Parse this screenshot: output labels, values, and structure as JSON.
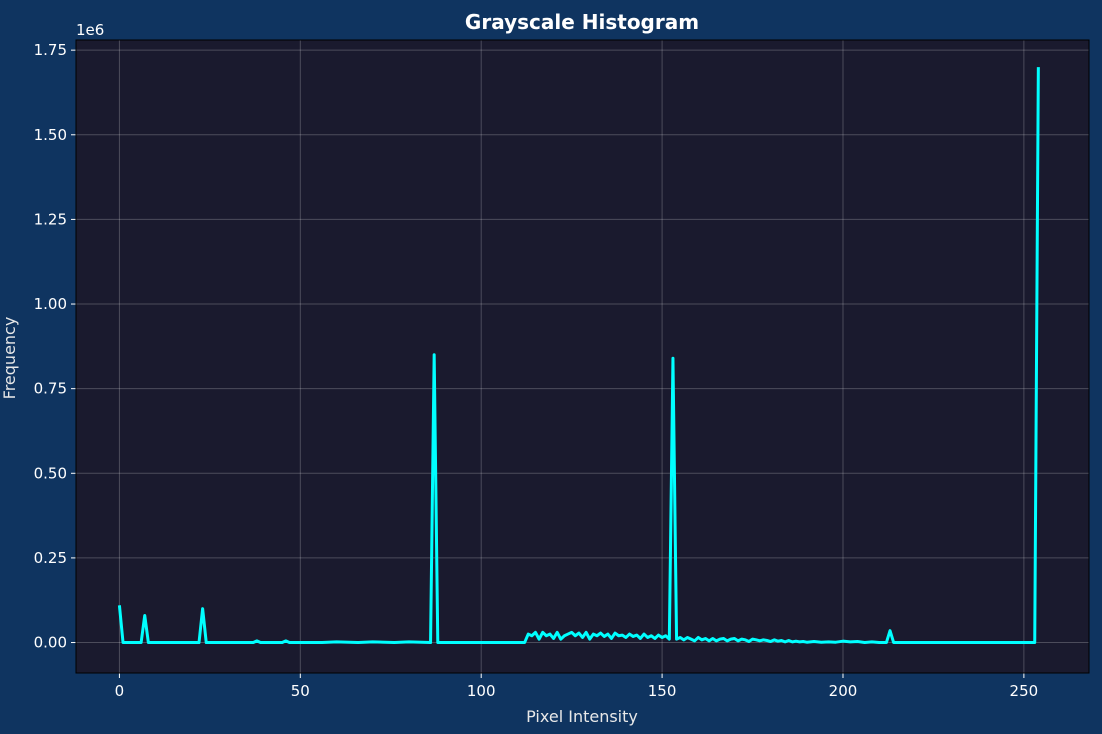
{
  "colors": {
    "figure_background": "#0f3460",
    "plot_background": "#1a1a2e",
    "line": "#00ffff",
    "grid": "#ffffff",
    "text": "#ffffff"
  },
  "chart_data": {
    "type": "line",
    "title": "Grayscale Histogram",
    "xlabel": "Pixel Intensity",
    "ylabel": "Frequency",
    "y_offset_label": "1e6",
    "xlim": [
      -12,
      268
    ],
    "ylim": [
      -0.09,
      1.78
    ],
    "x_ticks": [
      0,
      50,
      100,
      150,
      200,
      250
    ],
    "y_ticks": [
      0.0,
      0.25,
      0.5,
      0.75,
      1.0,
      1.25,
      1.5,
      1.75
    ],
    "y_tick_labels": [
      "0.00",
      "0.25",
      "0.50",
      "0.75",
      "1.00",
      "1.25",
      "1.50",
      "1.75"
    ],
    "grid": true,
    "series": [
      {
        "x": [
          0,
          1,
          6,
          7,
          8,
          22,
          23,
          24,
          37,
          38,
          39,
          45,
          46,
          47,
          56,
          60,
          66,
          70,
          76,
          80,
          86,
          87,
          88,
          112,
          113,
          114,
          115,
          116,
          117,
          118,
          119,
          120,
          121,
          122,
          123,
          124,
          125,
          126,
          127,
          128,
          129,
          130,
          131,
          132,
          133,
          134,
          135,
          136,
          137,
          138,
          139,
          140,
          141,
          142,
          143,
          144,
          145,
          146,
          147,
          148,
          149,
          150,
          151,
          152,
          153,
          154,
          155,
          156,
          157,
          158,
          159,
          160,
          161,
          162,
          163,
          164,
          165,
          166,
          167,
          168,
          169,
          170,
          171,
          172,
          173,
          174,
          175,
          176,
          177,
          178,
          179,
          180,
          181,
          182,
          183,
          184,
          185,
          186,
          187,
          188,
          189,
          190,
          192,
          194,
          196,
          198,
          200,
          202,
          204,
          206,
          208,
          210,
          212,
          213,
          214,
          220,
          230,
          240,
          253,
          254
        ],
        "y": [
          0.11,
          0.0,
          0.0,
          0.08,
          0.0,
          0.0,
          0.1,
          0.0,
          0.0,
          0.005,
          0.0,
          0.0,
          0.005,
          0.0,
          0.0,
          0.002,
          0.0,
          0.002,
          0.0,
          0.002,
          0.0,
          0.85,
          0.0,
          0.0,
          0.025,
          0.02,
          0.03,
          0.01,
          0.03,
          0.02,
          0.025,
          0.012,
          0.03,
          0.01,
          0.02,
          0.025,
          0.03,
          0.02,
          0.028,
          0.015,
          0.03,
          0.01,
          0.025,
          0.02,
          0.028,
          0.018,
          0.025,
          0.012,
          0.028,
          0.02,
          0.022,
          0.015,
          0.025,
          0.018,
          0.022,
          0.012,
          0.025,
          0.015,
          0.02,
          0.012,
          0.022,
          0.015,
          0.02,
          0.01,
          0.84,
          0.01,
          0.015,
          0.008,
          0.015,
          0.01,
          0.005,
          0.015,
          0.008,
          0.012,
          0.005,
          0.012,
          0.005,
          0.01,
          0.012,
          0.005,
          0.01,
          0.012,
          0.005,
          0.01,
          0.008,
          0.003,
          0.01,
          0.008,
          0.005,
          0.008,
          0.006,
          0.003,
          0.008,
          0.004,
          0.006,
          0.002,
          0.006,
          0.002,
          0.004,
          0.002,
          0.003,
          0.001,
          0.003,
          0.001,
          0.002,
          0.001,
          0.004,
          0.002,
          0.003,
          0.0,
          0.002,
          0.0,
          0.0,
          0.035,
          0.0,
          0.0,
          0.0,
          0.0,
          0.0,
          1.7
        ]
      }
    ]
  }
}
